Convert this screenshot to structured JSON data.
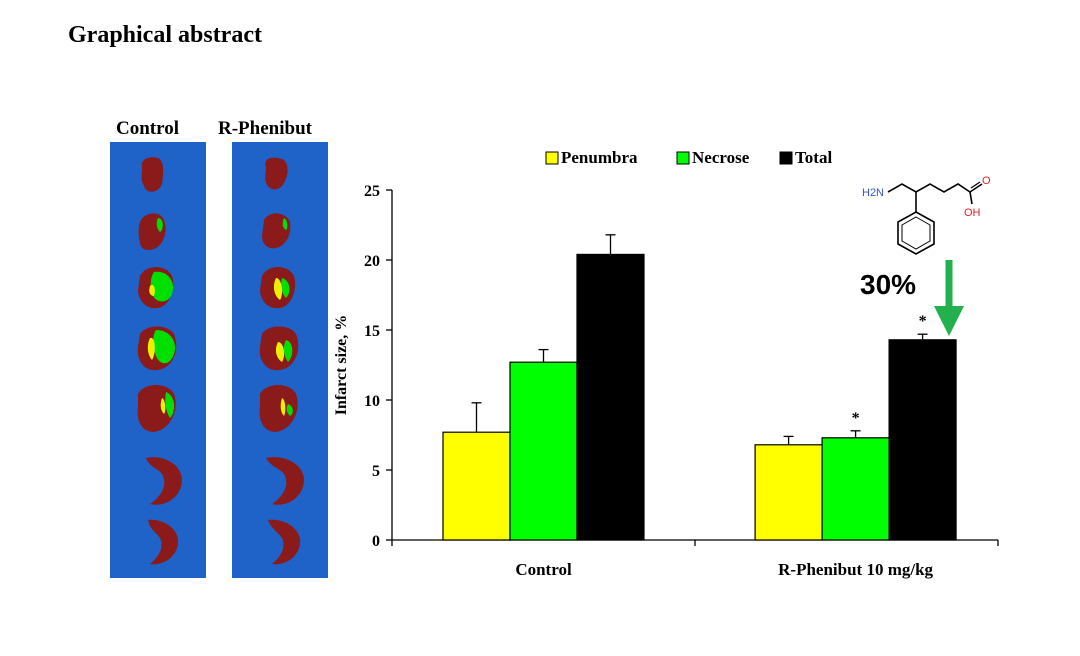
{
  "page": {
    "heading": "Graphical abstract"
  },
  "brain_panels": {
    "labels": [
      "Control",
      "R-Phenibut"
    ],
    "colors": {
      "panel": "#1f63c9",
      "tissue": "#8b1a1a",
      "penumbra": "#f0ee00",
      "necrose": "#00e000"
    }
  },
  "chart_data": {
    "type": "bar",
    "categories": [
      "Control",
      "R-Phenibut 10 mg/kg"
    ],
    "series": [
      {
        "name": "Penumbra",
        "color": "#ffff00",
        "values": [
          7.7,
          6.8
        ],
        "errors": [
          2.1,
          0.6
        ]
      },
      {
        "name": "Necrose",
        "color": "#00ff00",
        "values": [
          12.7,
          7.3
        ],
        "errors": [
          0.9,
          0.5
        ]
      },
      {
        "name": "Total",
        "color": "#000000",
        "values": [
          20.4,
          14.3
        ],
        "errors": [
          1.4,
          0.4
        ]
      }
    ],
    "significance": [
      {
        "category": 1,
        "series": 1,
        "label": "*"
      },
      {
        "category": 1,
        "series": 2,
        "label": "*"
      }
    ],
    "ylabel": "Infarct size, %",
    "ylim": [
      0,
      25
    ],
    "yticks": [
      0,
      5,
      10,
      15,
      20,
      25
    ],
    "legend_position": "top",
    "grid": false,
    "annotation": {
      "text": "30%",
      "arrow_color": "#22b14c"
    },
    "molecule_labels": {
      "amine": "H2N",
      "hydroxyl": "OH",
      "oxygen": "O"
    }
  }
}
